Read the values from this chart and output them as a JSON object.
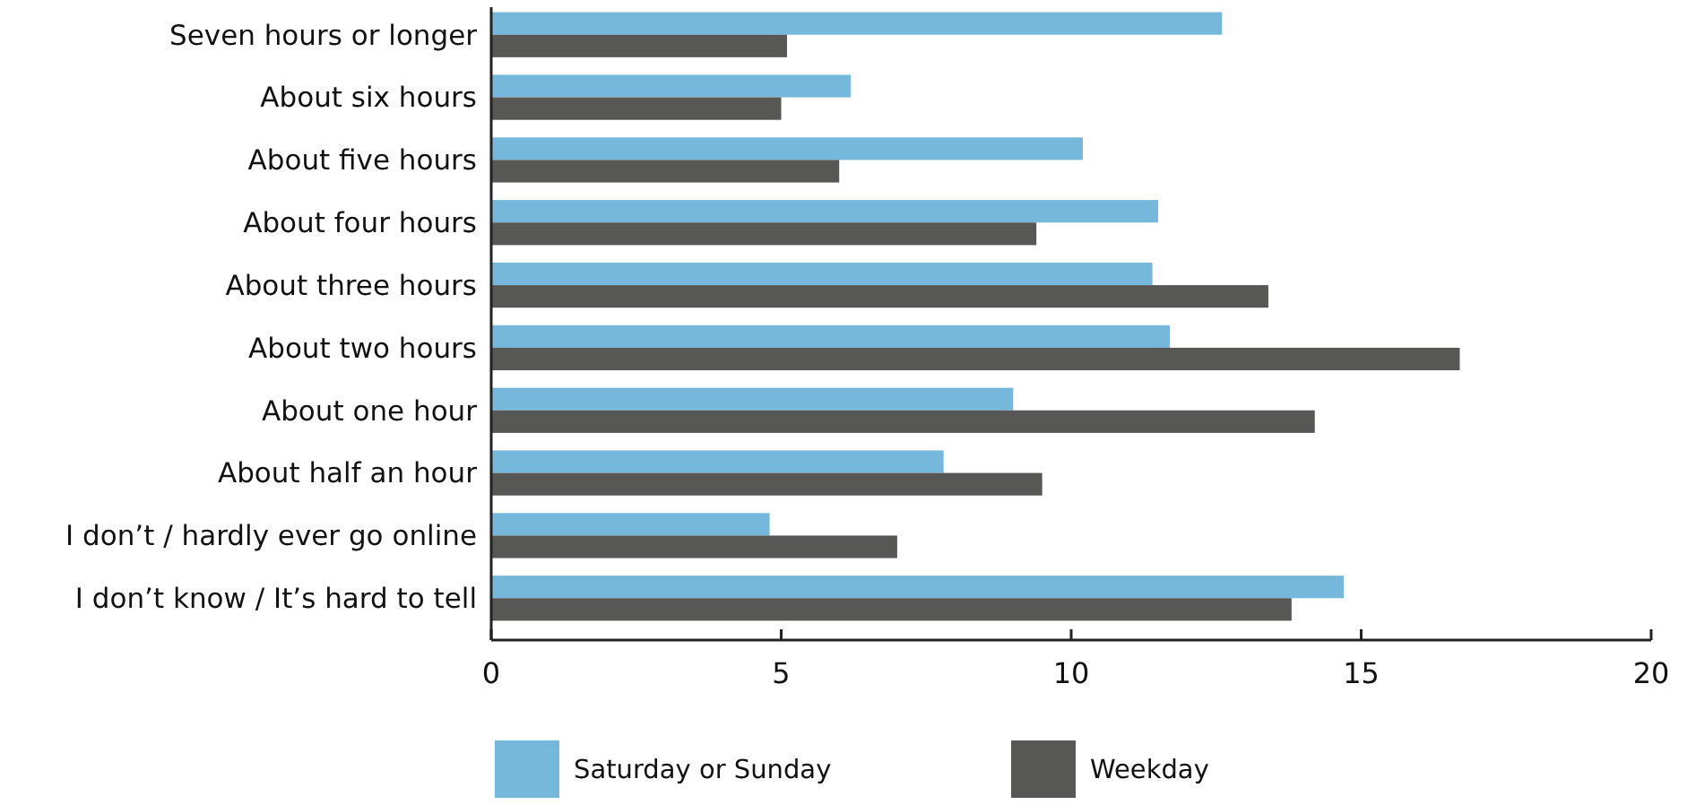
{
  "chart_data": {
    "type": "bar",
    "orientation": "horizontal",
    "categories": [
      "Seven hours or longer",
      "About six hours",
      "About five hours",
      "About four hours",
      "About three hours",
      "About two hours",
      "About one hour",
      "About half an hour",
      "I don’t / hardly ever go online",
      "I don’t know / It’s hard to tell"
    ],
    "series": [
      {
        "name": "Saturday or Sunday",
        "color": "#76b8db",
        "values": [
          12.6,
          6.2,
          10.2,
          11.5,
          11.4,
          11.7,
          9.0,
          7.8,
          4.8,
          14.7
        ]
      },
      {
        "name": "Weekday",
        "color": "#575756",
        "values": [
          5.1,
          5.0,
          6.0,
          9.4,
          13.4,
          16.7,
          14.2,
          9.5,
          7.0,
          13.8
        ]
      }
    ],
    "xlim": [
      0,
      20
    ],
    "xticks": [
      0,
      5,
      10,
      15,
      20
    ],
    "legend": "bottom"
  }
}
